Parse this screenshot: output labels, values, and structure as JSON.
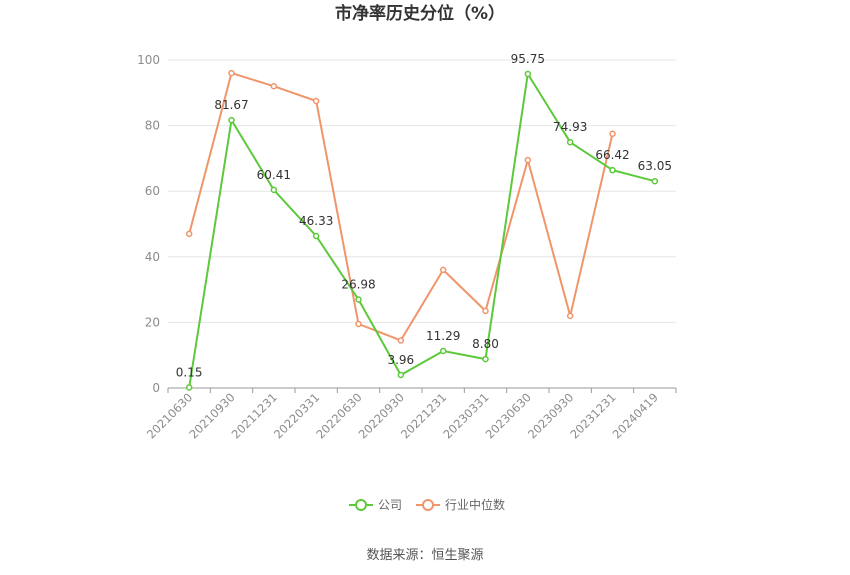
{
  "chart_data": {
    "type": "line",
    "title": "市净率历史分位（%）",
    "categories": [
      "20210630",
      "20210930",
      "20211231",
      "20220331",
      "20220630",
      "20220930",
      "20221231",
      "20230331",
      "20230630",
      "20230930",
      "20231231",
      "20240419"
    ],
    "ylim": [
      0,
      100
    ],
    "yticks": [
      0,
      20,
      40,
      60,
      80,
      100
    ],
    "grid": true,
    "legend_position": "bottom",
    "series": [
      {
        "name": "公司",
        "color": "#5cc93a",
        "values": [
          0.15,
          81.67,
          60.41,
          46.33,
          26.98,
          3.96,
          11.29,
          8.8,
          95.75,
          74.93,
          66.42,
          63.05
        ],
        "labels": [
          "0.15",
          "81.67",
          "60.41",
          "46.33",
          "26.98",
          "3.96",
          "11.29",
          "8.80",
          "95.75",
          "74.93",
          "66.42",
          "63.05"
        ]
      },
      {
        "name": "行业中位数",
        "color": "#f0956a",
        "values": [
          47,
          96,
          92,
          87.5,
          19.5,
          14.5,
          36,
          23.5,
          69.5,
          22,
          77.5,
          null
        ]
      }
    ]
  },
  "footer": {
    "source": "数据来源：恒生聚源"
  }
}
